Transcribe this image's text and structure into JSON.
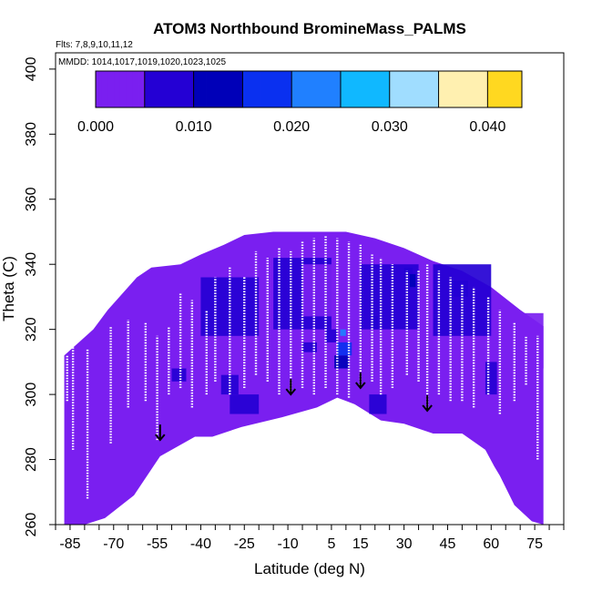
{
  "chart_data": {
    "type": "heatmap",
    "title": "ATOM3 Northbound BromineMass_PALMS",
    "flights_note": "Flts: 7,8,9,10,11,12",
    "dates_note": "MMDD: 1014,1017,1019,1020,1023,1025",
    "xlabel": "Latitude (deg N)",
    "ylabel": "Theta (C)",
    "xlim": [
      -90,
      85
    ],
    "ylim": [
      260,
      405
    ],
    "x_ticks": [
      -85,
      -70,
      -55,
      -40,
      -25,
      -10,
      5,
      15,
      30,
      45,
      60,
      75
    ],
    "x_minor_step": 5,
    "y_ticks": [
      260,
      280,
      300,
      320,
      340,
      360,
      380,
      400
    ],
    "colorbar": {
      "range": [
        0,
        0.0435
      ],
      "ticks": [
        "0.000",
        "0.010",
        "0.020",
        "0.030",
        "0.040"
      ],
      "tick_values": [
        0,
        0.01,
        0.02,
        0.03,
        0.04
      ],
      "step": 0.005,
      "colors": [
        "#7a1ff0",
        "#2400d4",
        "#0000b8",
        "#0a30f0",
        "#2080ff",
        "#10b8ff",
        "#a0ddff",
        "#fff0b0",
        "#ffd820",
        "#ff9500",
        "#ff3000",
        "#e00000",
        "#a01818"
      ]
    },
    "profile": [
      [
        -87,
        312
      ],
      [
        -82,
        316
      ],
      [
        -77,
        320
      ],
      [
        -72,
        326
      ],
      [
        -67,
        331
      ],
      [
        -62,
        336
      ],
      [
        -57,
        339
      ],
      [
        -47,
        340
      ],
      [
        -40,
        343
      ],
      [
        -32,
        346
      ],
      [
        -25,
        349
      ],
      [
        -15,
        350
      ],
      [
        0,
        350
      ],
      [
        10,
        350
      ],
      [
        20,
        348
      ],
      [
        30,
        345
      ],
      [
        40,
        341
      ],
      [
        50,
        338
      ],
      [
        60,
        333
      ],
      [
        70,
        326
      ],
      [
        78,
        321
      ]
    ],
    "bottom": [
      [
        -87,
        260
      ],
      [
        -80,
        260
      ],
      [
        -73,
        262
      ],
      [
        -63,
        269
      ],
      [
        -54,
        281
      ],
      [
        -42,
        287
      ],
      [
        -36,
        287
      ],
      [
        -26,
        290
      ],
      [
        -12,
        293
      ],
      [
        0,
        296
      ],
      [
        7,
        299
      ],
      [
        13,
        297
      ],
      [
        22,
        292
      ],
      [
        30,
        291
      ],
      [
        40,
        288
      ],
      [
        50,
        288
      ],
      [
        58,
        283
      ],
      [
        61,
        278
      ],
      [
        63,
        275
      ],
      [
        68,
        266
      ],
      [
        74,
        261
      ],
      [
        78,
        260
      ]
    ],
    "regions": [
      {
        "x": [
          -40,
          -20
        ],
        "y": [
          318,
          336
        ],
        "v": 0.005
      },
      {
        "x": [
          -15,
          5
        ],
        "y": [
          320,
          342
        ],
        "v": 0.005
      },
      {
        "x": [
          -5,
          10
        ],
        "y": [
          324,
          340
        ],
        "v": 0.004
      },
      {
        "x": [
          15,
          35
        ],
        "y": [
          320,
          340
        ],
        "v": 0.005
      },
      {
        "x": [
          40,
          60
        ],
        "y": [
          318,
          340
        ],
        "v": 0.006
      },
      {
        "x": [
          62,
          78
        ],
        "y": [
          308,
          325
        ],
        "v": 0.004
      },
      {
        "x": [
          -50,
          -45
        ],
        "y": [
          304,
          308
        ],
        "v": 0.007
      },
      {
        "x": [
          -33,
          -27
        ],
        "y": [
          300,
          306
        ],
        "v": 0.006
      },
      {
        "x": [
          -5,
          0
        ],
        "y": [
          313,
          316
        ],
        "v": 0.007
      },
      {
        "x": [
          6,
          11
        ],
        "y": [
          308,
          312
        ],
        "v": 0.011
      },
      {
        "x": [
          7,
          12
        ],
        "y": [
          312,
          316
        ],
        "v": 0.018
      },
      {
        "x": [
          8,
          10
        ],
        "y": [
          318,
          320
        ],
        "v": 0.02
      },
      {
        "x": [
          3,
          7
        ],
        "y": [
          316,
          320
        ],
        "v": 0.009
      },
      {
        "x": [
          19,
          21
        ],
        "y": [
          320,
          324
        ],
        "v": 0.006
      },
      {
        "x": [
          30,
          33
        ],
        "y": [
          335,
          339
        ],
        "v": 0.008
      },
      {
        "x": [
          32,
          34
        ],
        "y": [
          333,
          337
        ],
        "v": 0.014
      },
      {
        "x": [
          46,
          52
        ],
        "y": [
          330,
          335
        ],
        "v": 0.007
      },
      {
        "x": [
          58,
          62
        ],
        "y": [
          300,
          310
        ],
        "v": 0.006
      },
      {
        "x": [
          -30,
          -20
        ],
        "y": [
          294,
          300
        ],
        "v": 0.006
      },
      {
        "x": [
          18,
          24
        ],
        "y": [
          294,
          300
        ],
        "v": 0.005
      }
    ],
    "arrows": [
      [
        -54,
        286
      ],
      [
        -9,
        300
      ],
      [
        15,
        302
      ],
      [
        38,
        295
      ]
    ],
    "tracks": [
      [
        -86,
        298,
        312
      ],
      [
        -84,
        283,
        315
      ],
      [
        -79,
        268,
        314
      ],
      [
        -71,
        285,
        321
      ],
      [
        -65,
        296,
        323
      ],
      [
        -59,
        298,
        322
      ],
      [
        -55,
        286,
        318
      ],
      [
        -51,
        300,
        321
      ],
      [
        -47,
        302,
        331
      ],
      [
        -43,
        296,
        329
      ],
      [
        -38,
        300,
        326
      ],
      [
        -35,
        304,
        336
      ],
      [
        -30,
        300,
        339
      ],
      [
        -25,
        302,
        336
      ],
      [
        -21,
        306,
        344
      ],
      [
        -17,
        304,
        342
      ],
      [
        -13,
        300,
        345
      ],
      [
        -9,
        300,
        344
      ],
      [
        -5,
        302,
        347
      ],
      [
        -1,
        300,
        348
      ],
      [
        3,
        302,
        349
      ],
      [
        7,
        300,
        348
      ],
      [
        11,
        299,
        347
      ],
      [
        15,
        302,
        346
      ],
      [
        19,
        304,
        343
      ],
      [
        22,
        300,
        342
      ],
      [
        26,
        302,
        340
      ],
      [
        31,
        306,
        338
      ],
      [
        35,
        304,
        338
      ],
      [
        38,
        295,
        340
      ],
      [
        42,
        300,
        338
      ],
      [
        46,
        298,
        336
      ],
      [
        50,
        298,
        334
      ],
      [
        54,
        296,
        333
      ],
      [
        59,
        300,
        330
      ],
      [
        63,
        294,
        326
      ],
      [
        68,
        298,
        322
      ],
      [
        72,
        303,
        318
      ],
      [
        76,
        280,
        318
      ]
    ]
  }
}
